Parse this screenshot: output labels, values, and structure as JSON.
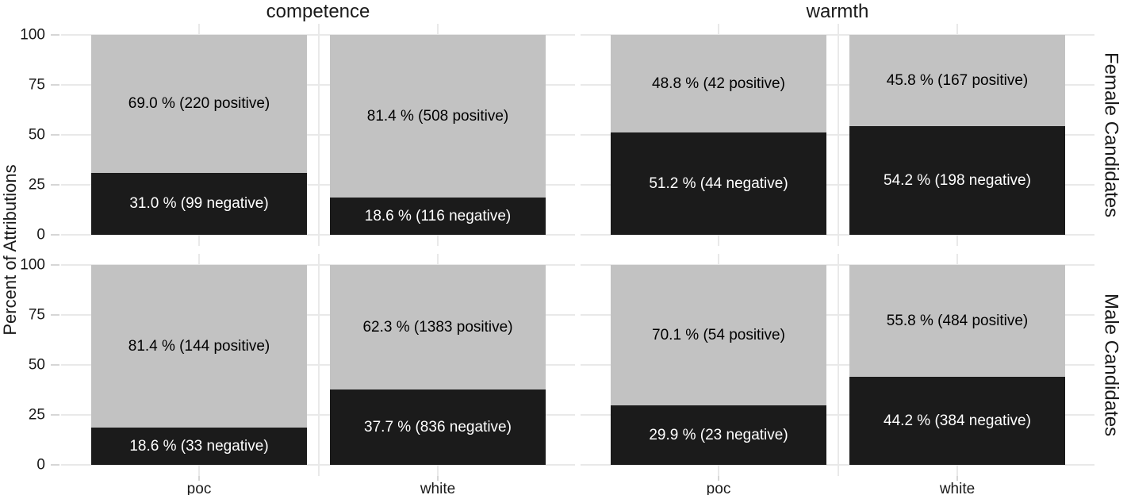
{
  "chart_data": {
    "type": "bar",
    "stacked": true,
    "orientation": "vertical",
    "title": "",
    "ylabel": "Percent of Attributions",
    "ylim": [
      0,
      100
    ],
    "yticks": [
      0,
      25,
      50,
      75,
      100
    ],
    "grid": true,
    "legend": false,
    "categories": [
      "poc",
      "white"
    ],
    "facets": {
      "columns": [
        "competence",
        "warmth"
      ],
      "rows": [
        "Female Candidates",
        "Male Candidates"
      ]
    },
    "series_names": [
      "positive",
      "negative"
    ],
    "panels": [
      {
        "facet_col": "competence",
        "facet_row": "Female Candidates",
        "bars": [
          {
            "category": "poc",
            "segments": [
              {
                "series": "positive",
                "pct": 69.0,
                "count": 220,
                "label": "69.0 % (220 positive)"
              },
              {
                "series": "negative",
                "pct": 31.0,
                "count": 99,
                "label": "31.0 % (99 negative)"
              }
            ]
          },
          {
            "category": "white",
            "segments": [
              {
                "series": "positive",
                "pct": 81.4,
                "count": 508,
                "label": "81.4 % (508 positive)"
              },
              {
                "series": "negative",
                "pct": 18.6,
                "count": 116,
                "label": "18.6 % (116 negative)"
              }
            ]
          }
        ]
      },
      {
        "facet_col": "warmth",
        "facet_row": "Female Candidates",
        "bars": [
          {
            "category": "poc",
            "segments": [
              {
                "series": "positive",
                "pct": 48.8,
                "count": 42,
                "label": "48.8 % (42 positive)"
              },
              {
                "series": "negative",
                "pct": 51.2,
                "count": 44,
                "label": "51.2 % (44 negative)"
              }
            ]
          },
          {
            "category": "white",
            "segments": [
              {
                "series": "positive",
                "pct": 45.8,
                "count": 167,
                "label": "45.8 % (167 positive)"
              },
              {
                "series": "negative",
                "pct": 54.2,
                "count": 198,
                "label": "54.2 % (198 negative)"
              }
            ]
          }
        ]
      },
      {
        "facet_col": "competence",
        "facet_row": "Male Candidates",
        "bars": [
          {
            "category": "poc",
            "segments": [
              {
                "series": "positive",
                "pct": 81.4,
                "count": 144,
                "label": "81.4 % (144 positive)"
              },
              {
                "series": "negative",
                "pct": 18.6,
                "count": 33,
                "label": "18.6 % (33 negative)"
              }
            ]
          },
          {
            "category": "white",
            "segments": [
              {
                "series": "positive",
                "pct": 62.3,
                "count": 1383,
                "label": "62.3 % (1383 positive)"
              },
              {
                "series": "negative",
                "pct": 37.7,
                "count": 836,
                "label": "37.7 % (836 negative)"
              }
            ]
          }
        ]
      },
      {
        "facet_col": "warmth",
        "facet_row": "Male Candidates",
        "bars": [
          {
            "category": "poc",
            "segments": [
              {
                "series": "positive",
                "pct": 70.1,
                "count": 54,
                "label": "70.1 % (54 positive)"
              },
              {
                "series": "negative",
                "pct": 29.9,
                "count": 23,
                "label": "29.9 % (23 negative)"
              }
            ]
          },
          {
            "category": "white",
            "segments": [
              {
                "series": "positive",
                "pct": 55.8,
                "count": 484,
                "label": "55.8 % (484 positive)"
              },
              {
                "series": "negative",
                "pct": 44.2,
                "count": 384,
                "label": "44.2 % (384 negative)"
              }
            ]
          }
        ]
      }
    ]
  },
  "colors": {
    "positive_fill": "#c2c2c2",
    "negative_fill": "#1b1b1b",
    "label_on_positive": "#000000",
    "label_on_negative": "#ffffff",
    "gridline": "#e9e9e9",
    "tick": "#d6d6d6",
    "text": "#1a1a1a",
    "background": "#ffffff"
  }
}
